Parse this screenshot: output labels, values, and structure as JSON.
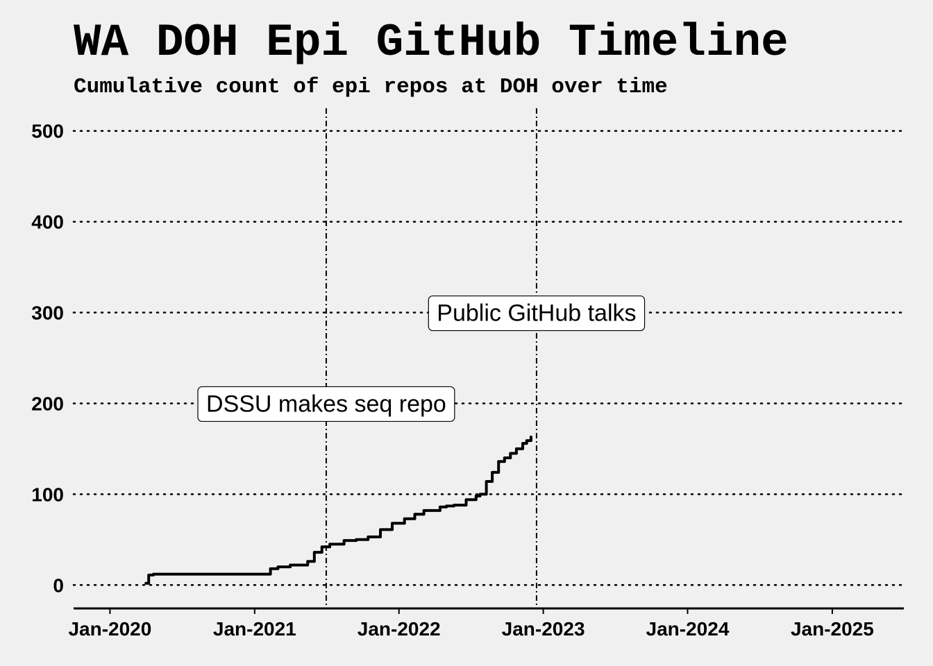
{
  "chart_data": {
    "type": "line",
    "title": "WA DOH Epi GitHub Timeline",
    "subtitle": "Cumulative count of epi repos at DOH over time",
    "xlabel": "",
    "ylabel": "",
    "xlim": [
      "2019-10-01",
      "2025-07-01"
    ],
    "ylim": [
      -25,
      525
    ],
    "x_ticks": [
      "2020-01-01",
      "2021-01-01",
      "2022-01-01",
      "2023-01-01",
      "2024-01-01",
      "2025-01-01"
    ],
    "x_tick_labels": [
      "Jan-2020",
      "Jan-2021",
      "Jan-2022",
      "Jan-2023",
      "Jan-2024",
      "Jan-2025"
    ],
    "y_ticks": [
      0,
      100,
      200,
      300,
      400,
      500
    ],
    "y_tick_labels": [
      "0",
      "100",
      "200",
      "300",
      "400",
      "500"
    ],
    "grid": "horizontal dotted",
    "series": [
      {
        "x": [
          "2020-04-01",
          "2020-04-08",
          "2020-04-20",
          "2020-06-01",
          "2020-09-01",
          "2020-12-01",
          "2021-01-01",
          "2021-02-01",
          "2021-02-10",
          "2021-03-01",
          "2021-04-01",
          "2021-05-15",
          "2021-06-01",
          "2021-06-20",
          "2021-07-10",
          "2021-08-15",
          "2021-09-15",
          "2021-10-15",
          "2021-11-15",
          "2021-12-15",
          "2022-01-15",
          "2022-02-10",
          "2022-03-05",
          "2022-04-15",
          "2022-05-01",
          "2022-05-20",
          "2022-06-20",
          "2022-07-15",
          "2022-07-25",
          "2022-08-10",
          "2022-08-25",
          "2022-09-10",
          "2022-09-25",
          "2022-10-10",
          "2022-10-25",
          "2022-11-10",
          "2022-11-20",
          "2022-12-01"
        ],
        "values": [
          2,
          11,
          12,
          12,
          12,
          12,
          12,
          12,
          18,
          20,
          22,
          26,
          36,
          42,
          45,
          49,
          50,
          53,
          61,
          68,
          73,
          78,
          82,
          86,
          87,
          88,
          94,
          98,
          100,
          114,
          124,
          136,
          140,
          145,
          150,
          156,
          159,
          163
        ]
      }
    ],
    "vlines": [
      {
        "x": "2021-07-01",
        "label": "DSSU makes seq repo",
        "label_y": 200
      },
      {
        "x": "2022-12-15",
        "label": "Public GitHub talks",
        "label_y": 300
      }
    ],
    "colors": {
      "line": "#000000",
      "background": "#f0f0f0",
      "grid": "#000000",
      "label_box": "#ffffff"
    }
  }
}
